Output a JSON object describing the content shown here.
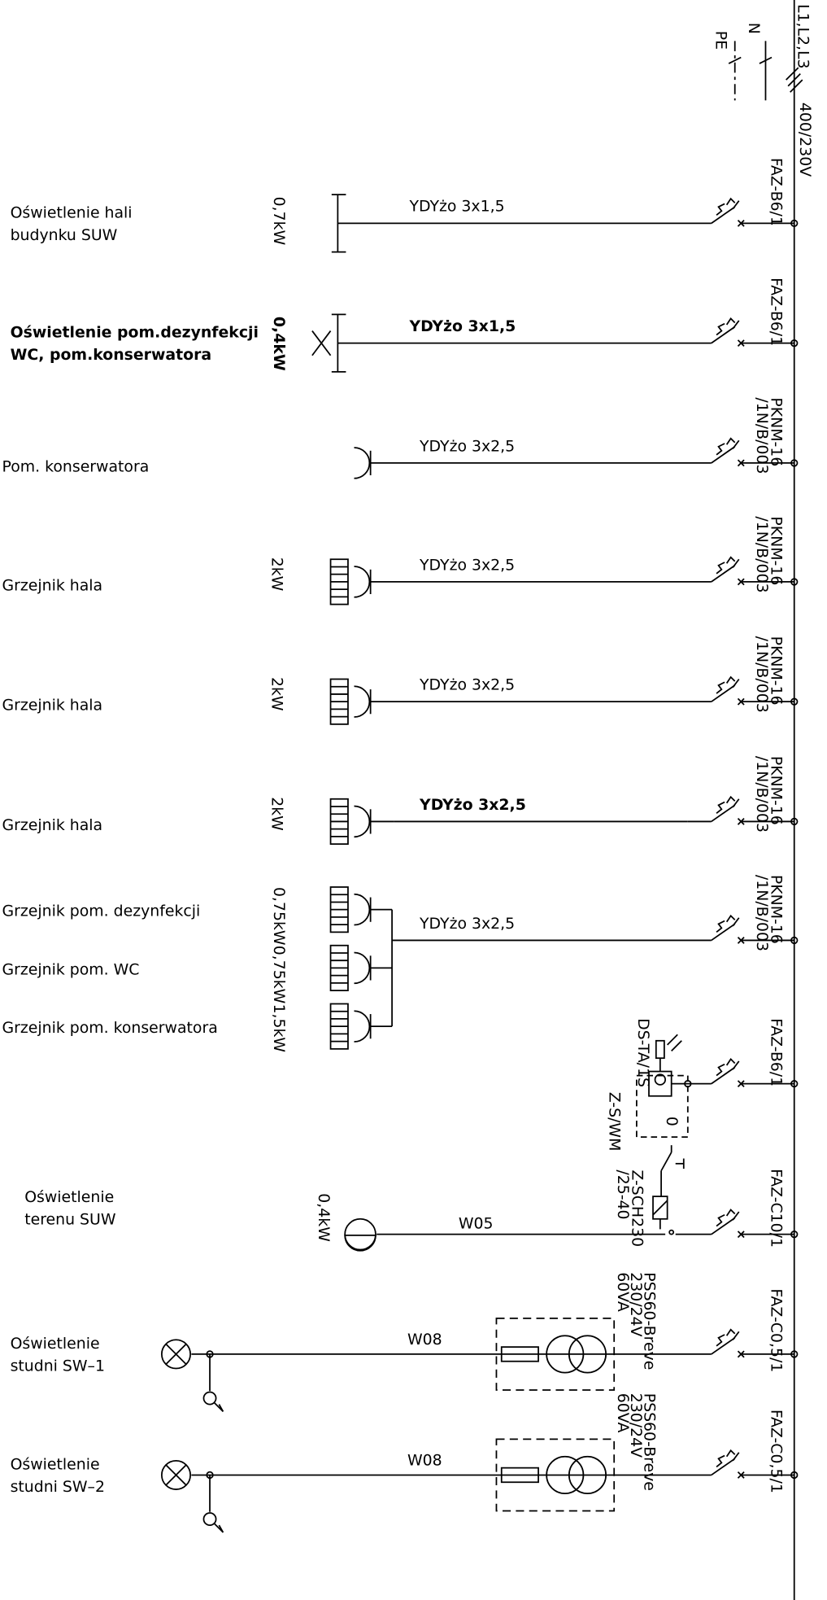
{
  "supply": {
    "phases": "L1,L2,L3",
    "voltage": "400/230V",
    "neutral": "N",
    "protective_earth": "PE"
  },
  "circuits": [
    {
      "labels": [
        "Oświetlenie hali",
        "budynku SUW"
      ],
      "powers": [
        "0,7kW"
      ],
      "cable": "YDYżo 3x1,5",
      "breaker": [
        "FAZ-B6/1"
      ]
    },
    {
      "labels": [
        "Oświetlenie pom.dezynfekcji",
        "WC, pom.konserwatora"
      ],
      "powers": [
        "0,4kW"
      ],
      "cable": "YDYżo 3x1,5",
      "breaker": [
        "FAZ-B6/1"
      ]
    },
    {
      "labels": [
        "Pom. konserwatora"
      ],
      "powers": [],
      "cable": "YDYżo 3x2,5",
      "breaker": [
        "PKNM-16",
        "/1N/B/003"
      ]
    },
    {
      "labels": [
        "Grzejnik hala"
      ],
      "powers": [
        "2kW"
      ],
      "cable": "YDYżo 3x2,5",
      "breaker": [
        "PKNM-16",
        "/1N/B/003"
      ]
    },
    {
      "labels": [
        "Grzejnik hala"
      ],
      "powers": [
        "2kW"
      ],
      "cable": "YDYżo 3x2,5",
      "breaker": [
        "PKNM-16",
        "/1N/B/003"
      ]
    },
    {
      "labels": [
        "Grzejnik hala"
      ],
      "powers": [
        "2kW"
      ],
      "cable": "YDYżo 3x2,5",
      "breaker": [
        "PKNM-16",
        "/1N/B/003"
      ]
    },
    {
      "labels": [
        "Grzejnik pom. dezynfekcji",
        "Grzejnik pom. WC",
        "Grzejnik pom. konserwatora"
      ],
      "powers": [
        "0,75kW",
        "0,75kW",
        "1,5kW"
      ],
      "cable": "YDYżo 3x2,5",
      "breaker": [
        "PKNM-16",
        "/1N/B/003"
      ]
    },
    {
      "labels": [
        "Oświetlenie",
        "terenu SUW"
      ],
      "powers": [
        "0,4kW"
      ],
      "cable": "W05",
      "breaker": [
        "FAZ-C10/1"
      ]
    },
    {
      "labels": [
        "Oświetlenie",
        "studni SW–1"
      ],
      "powers": [],
      "cable": "W08",
      "breaker": [
        "FAZ-C0,5/1"
      ],
      "transformer": [
        "PSS60-Breve",
        "230/24V",
        "60VA"
      ]
    },
    {
      "labels": [
        "Oświetlenie",
        "studni SW–2"
      ],
      "powers": [],
      "cable": "W08",
      "breaker": [
        "FAZ-C0,5/1"
      ],
      "transformer": [
        "PSS60-Breve",
        "230/24V",
        "60VA"
      ]
    }
  ],
  "control": {
    "breaker": [
      "FAZ-B6/1"
    ],
    "switch": "DS-TA/1S",
    "contactor": "Z-S/WM",
    "position": "0",
    "relay": [
      "Z-SCH230",
      "/25-40"
    ]
  }
}
